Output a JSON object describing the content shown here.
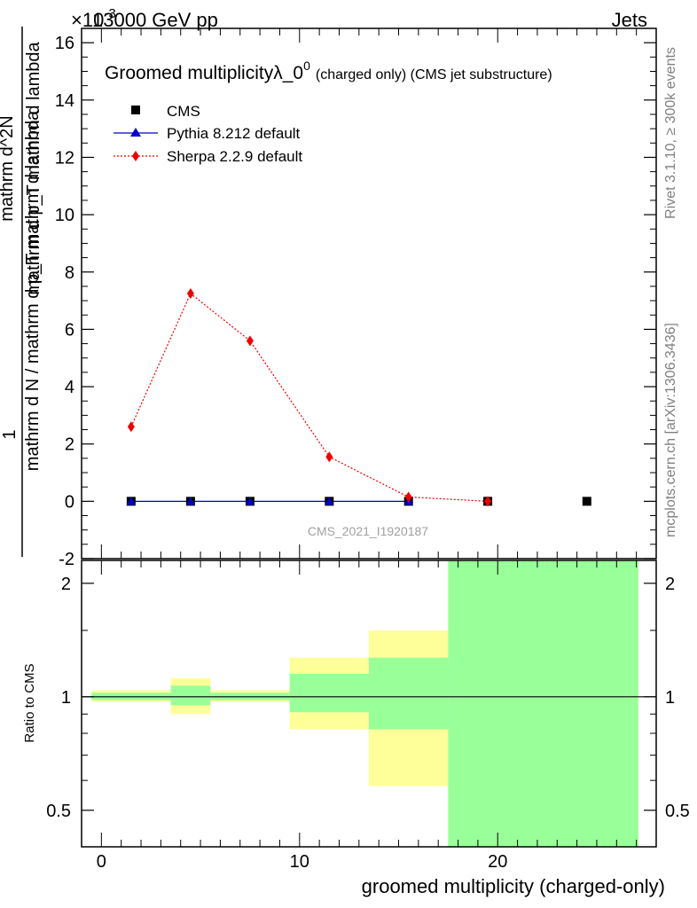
{
  "header": {
    "energy": "13000 GeV pp",
    "category": "Jets",
    "exponent": "×10",
    "exponent_power": "-3"
  },
  "side_labels": {
    "rivet": "Rivet 3.1.10, ≥ 300k events",
    "mcplots": "mcplots.cern.ch [arXiv:1306.3436]"
  },
  "colors": {
    "cms": "#000000",
    "pythia": "#0000cc",
    "sherpa": "#ee0000",
    "band_yellow": "#ffff99",
    "band_green": "#99ff99"
  },
  "chart_data": [
    {
      "type": "line",
      "title": "Groomed multiplicity",
      "title_lambda": "λ_0",
      "title_sup": "0",
      "title_tail": "(charged only) (CMS jet substructure)",
      "ylabel_num": "1",
      "ylabel_den": "mathrm d N / mathrm d p_T mathrm d lambda",
      "ylabel_frac_num": "mathrm d^2N",
      "ylabel_frac_den": "mathrm d p_T mathrm d lambda",
      "watermark": "CMS_2021_I1920187",
      "xlim": [
        -1,
        28
      ],
      "ylim": [
        -2,
        16.5
      ],
      "yticks": [
        -2,
        0,
        2,
        4,
        6,
        8,
        10,
        12,
        14,
        16
      ],
      "legend": [
        {
          "name": "CMS",
          "marker": "square"
        },
        {
          "name": "Pythia 8.212 default",
          "marker": "triangle"
        },
        {
          "name": "Sherpa 2.2.9 default",
          "marker": "diamond"
        }
      ],
      "series": [
        {
          "name": "CMS",
          "x": [
            1.5,
            4.5,
            7.5,
            11.5,
            15.5,
            19.5,
            24.5
          ],
          "values": [
            0,
            0,
            0,
            0,
            0,
            0,
            0
          ]
        },
        {
          "name": "Pythia 8.212 default",
          "x": [
            1.5,
            4.5,
            7.5,
            11.5,
            15.5
          ],
          "values": [
            0,
            0,
            0,
            0,
            0
          ]
        },
        {
          "name": "Sherpa 2.2.9 default",
          "x": [
            1.5,
            4.5,
            7.5,
            11.5,
            15.5,
            19.5
          ],
          "values": [
            2.6,
            7.25,
            5.6,
            1.55,
            0.15,
            0.0
          ]
        }
      ]
    },
    {
      "type": "area",
      "ylabel": "Ratio to CMS",
      "xlabel": "groomed multiplicity (charged-only)",
      "xlim": [
        -1,
        28
      ],
      "ylim": [
        0.4,
        2.3
      ],
      "xticks": [
        0,
        10,
        20
      ],
      "yticks": [
        0.5,
        1,
        2
      ],
      "ytick_labels": [
        "0.5",
        "1",
        "2"
      ],
      "bands": [
        {
          "x0": -0.5,
          "x1": 3.5,
          "yellow": [
            0.97,
            1.04
          ],
          "green": [
            0.98,
            1.025
          ]
        },
        {
          "x0": 3.5,
          "x1": 5.5,
          "yellow": [
            0.9,
            1.12
          ],
          "green": [
            0.95,
            1.07
          ]
        },
        {
          "x0": 5.5,
          "x1": 9.5,
          "yellow": [
            0.97,
            1.04
          ],
          "green": [
            0.98,
            1.025
          ]
        },
        {
          "x0": 9.5,
          "x1": 13.5,
          "yellow": [
            0.82,
            1.27
          ],
          "green": [
            0.91,
            1.15
          ]
        },
        {
          "x0": 13.5,
          "x1": 17.5,
          "yellow": [
            0.58,
            1.5
          ],
          "green": [
            0.82,
            1.27
          ]
        },
        {
          "x0": 17.5,
          "x1": 27.5,
          "yellow": [
            0.4,
            2.3
          ],
          "green": [
            0.4,
            2.3
          ]
        }
      ]
    }
  ]
}
